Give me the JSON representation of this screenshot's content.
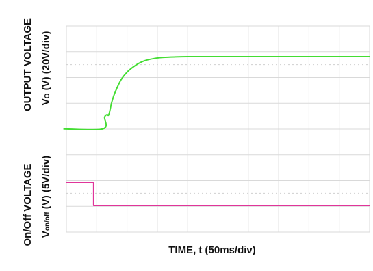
{
  "chart_data": [
    {
      "type": "line",
      "panel": "top",
      "title": "",
      "ylabel_line1": "OUTPUT VOLTAGE",
      "ylabel_line2_main": "V",
      "ylabel_line2_sub": "O",
      "ylabel_line2_rest": " (V) (20V/div)",
      "xlabel": "TIME, t (50ms/div)",
      "xlim": [
        0,
        500
      ],
      "ylim": [
        -1,
        4
      ],
      "x_unit": "ms",
      "y_unit": "div",
      "grid": true,
      "series": [
        {
          "color": "#44dd33",
          "x": [
            -5,
            60,
            63,
            67,
            70,
            75,
            80,
            90,
            100,
            110,
            120,
            130,
            145,
            160,
            180,
            200,
            230,
            260,
            300,
            500
          ],
          "y": [
            -1.0,
            -1.0,
            -0.55,
            -0.45,
            -0.45,
            0.05,
            0.4,
            0.9,
            1.2,
            1.4,
            1.55,
            1.65,
            1.73,
            1.77,
            1.79,
            1.8,
            1.8,
            1.8,
            1.8,
            1.8
          ]
        }
      ]
    },
    {
      "type": "line",
      "panel": "bottom",
      "title": "",
      "ylabel_line1": "On/Off VOLTAGE",
      "ylabel_line2_main": "V",
      "ylabel_line2_sub": "on/off",
      "ylabel_line2_rest": " (V) (5V/div)",
      "xlabel": "TIME, t (50ms/div)",
      "xlim": [
        0,
        500
      ],
      "ylim": [
        -1,
        2
      ],
      "x_unit": "ms",
      "y_unit": "div",
      "grid": true,
      "series": [
        {
          "color": "#e0359a",
          "x": [
            0,
            45,
            45,
            500
          ],
          "y": [
            0.9,
            0.9,
            0.0,
            0.0
          ]
        }
      ]
    }
  ],
  "colors": {
    "grid": "#d9d9d9",
    "axis_label": "#111111",
    "output_trace": "#44dd33",
    "onoff_trace": "#e0359a"
  }
}
